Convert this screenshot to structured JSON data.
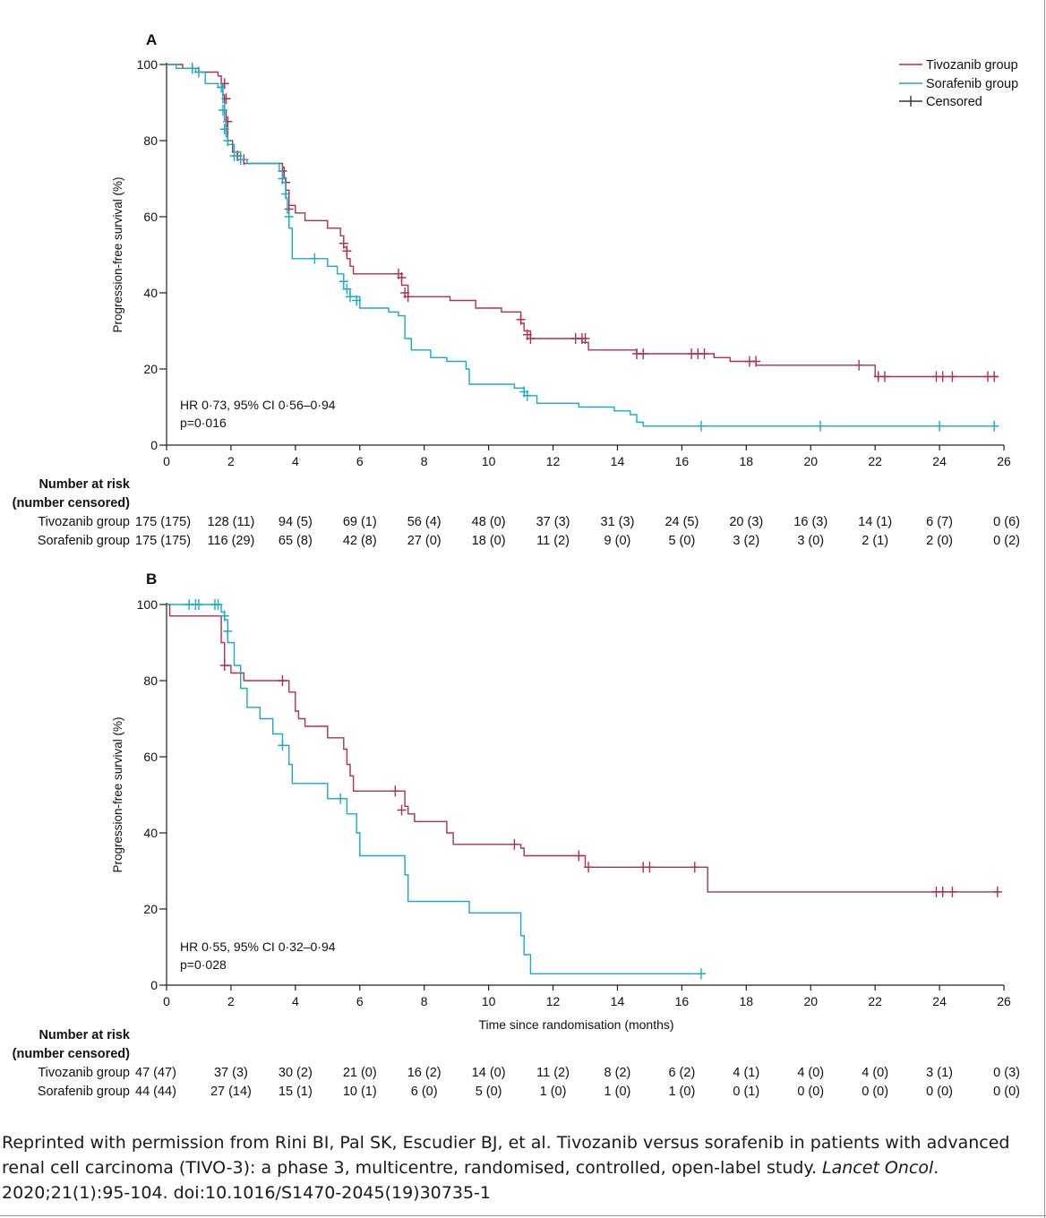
{
  "legend": {
    "tivozanib": "Tivozanib group",
    "sorafenib": "Sorafenib group",
    "censored": "Censored"
  },
  "colors": {
    "tivozanib": "#b0304f",
    "sorafenib": "#1aabc8",
    "axis": "#222222"
  },
  "risk_header": [
    "Number at risk",
    "(number censored)"
  ],
  "caption": {
    "text_before": "Reprinted with permission from Rini BI, Pal SK, Escudier BJ, et al. Tivozanib versus sorafenib in patients with advanced renal cell carcinoma (TIVO-3): a phase 3, multicentre, randomised, controlled, open-label study. ",
    "journal": "Lancet Oncol",
    "text_after": ". 2020;21(1):95-104. doi:10.1016/S1470-2045(19)30735-1"
  },
  "chart_data": [
    {
      "type": "line",
      "panel": "A",
      "ylabel": "Progression-free survival (%)",
      "xlabel": "",
      "xlim": [
        0,
        26
      ],
      "ylim": [
        0,
        100
      ],
      "xticks": [
        0,
        2,
        4,
        6,
        8,
        10,
        12,
        14,
        16,
        18,
        20,
        22,
        24,
        26
      ],
      "yticks": [
        0,
        20,
        40,
        60,
        80,
        100
      ],
      "annotation": [
        "HR 0·73, 95% CI 0·56–0·94",
        "p=0·016"
      ],
      "series": [
        {
          "name": "Tivozanib group",
          "steps": [
            [
              0,
              100
            ],
            [
              0.5,
              99
            ],
            [
              1.0,
              98
            ],
            [
              1.6,
              97
            ],
            [
              1.7,
              95
            ],
            [
              1.75,
              92
            ],
            [
              1.8,
              88
            ],
            [
              1.85,
              84
            ],
            [
              1.9,
              80
            ],
            [
              2.05,
              77
            ],
            [
              2.2,
              75
            ],
            [
              2.4,
              74
            ],
            [
              3.6,
              73
            ],
            [
              3.65,
              70
            ],
            [
              3.7,
              67
            ],
            [
              3.8,
              63
            ],
            [
              4.0,
              61
            ],
            [
              4.3,
              59
            ],
            [
              5.0,
              57
            ],
            [
              5.4,
              55
            ],
            [
              5.5,
              52
            ],
            [
              5.6,
              49
            ],
            [
              5.7,
              47
            ],
            [
              5.8,
              45
            ],
            [
              7.3,
              42
            ],
            [
              7.5,
              39
            ],
            [
              8.8,
              38
            ],
            [
              9.6,
              36
            ],
            [
              10.4,
              35
            ],
            [
              11.0,
              32
            ],
            [
              11.1,
              30
            ],
            [
              11.3,
              28
            ],
            [
              12.9,
              27
            ],
            [
              13.1,
              25
            ],
            [
              14.6,
              24
            ],
            [
              17.0,
              23
            ],
            [
              17.5,
              22
            ],
            [
              18.3,
              21
            ],
            [
              18.7,
              21
            ],
            [
              21.6,
              21
            ],
            [
              22.0,
              18
            ],
            [
              25.8,
              18
            ]
          ],
          "censored": [
            [
              0.8,
              99
            ],
            [
              1.8,
              95
            ],
            [
              1.85,
              91
            ],
            [
              1.9,
              85
            ],
            [
              2.2,
              76
            ],
            [
              2.4,
              75
            ],
            [
              3.6,
              72
            ],
            [
              3.7,
              69
            ],
            [
              3.8,
              62
            ],
            [
              5.5,
              53
            ],
            [
              5.6,
              51
            ],
            [
              7.2,
              45
            ],
            [
              7.3,
              44
            ],
            [
              7.4,
              40
            ],
            [
              7.5,
              39
            ],
            [
              11.0,
              33
            ],
            [
              11.2,
              29
            ],
            [
              11.3,
              28
            ],
            [
              12.7,
              28
            ],
            [
              12.9,
              28
            ],
            [
              13.0,
              28
            ],
            [
              14.6,
              24
            ],
            [
              14.8,
              24
            ],
            [
              16.3,
              24
            ],
            [
              16.5,
              24
            ],
            [
              16.7,
              24
            ],
            [
              18.1,
              22
            ],
            [
              18.3,
              22
            ],
            [
              21.5,
              21
            ],
            [
              22.1,
              18
            ],
            [
              22.3,
              18
            ],
            [
              23.9,
              18
            ],
            [
              24.1,
              18
            ],
            [
              24.4,
              18
            ],
            [
              25.5,
              18
            ],
            [
              25.7,
              18
            ]
          ]
        },
        {
          "name": "Sorafenib group",
          "steps": [
            [
              0,
              100
            ],
            [
              0.3,
              99
            ],
            [
              0.9,
              98
            ],
            [
              1.2,
              95
            ],
            [
              1.6,
              94
            ],
            [
              1.75,
              90
            ],
            [
              1.8,
              85
            ],
            [
              1.85,
              81
            ],
            [
              1.9,
              79
            ],
            [
              2.1,
              77
            ],
            [
              2.3,
              75
            ],
            [
              2.5,
              74
            ],
            [
              3.5,
              72
            ],
            [
              3.6,
              69
            ],
            [
              3.7,
              65
            ],
            [
              3.75,
              61
            ],
            [
              3.8,
              57
            ],
            [
              3.9,
              49
            ],
            [
              5.0,
              47
            ],
            [
              5.3,
              45
            ],
            [
              5.5,
              41
            ],
            [
              5.7,
              39
            ],
            [
              6.0,
              36
            ],
            [
              6.9,
              35
            ],
            [
              7.2,
              34
            ],
            [
              7.4,
              28
            ],
            [
              7.6,
              25
            ],
            [
              8.2,
              23
            ],
            [
              8.7,
              22
            ],
            [
              9.3,
              20
            ],
            [
              9.4,
              16
            ],
            [
              10.8,
              15
            ],
            [
              11.1,
              13
            ],
            [
              11.5,
              11
            ],
            [
              12.8,
              10
            ],
            [
              13.9,
              9
            ],
            [
              14.4,
              8
            ],
            [
              14.6,
              6
            ],
            [
              14.8,
              5
            ],
            [
              25.8,
              5
            ]
          ],
          "censored": [
            [
              0.8,
              99
            ],
            [
              1.0,
              98
            ],
            [
              1.7,
              94
            ],
            [
              1.75,
              88
            ],
            [
              1.8,
              83
            ],
            [
              1.9,
              80
            ],
            [
              2.1,
              76
            ],
            [
              2.3,
              75
            ],
            [
              3.6,
              70
            ],
            [
              3.7,
              66
            ],
            [
              3.8,
              60
            ],
            [
              4.6,
              49
            ],
            [
              5.5,
              43
            ],
            [
              5.6,
              41
            ],
            [
              5.7,
              39
            ],
            [
              5.9,
              38
            ],
            [
              11.1,
              14
            ],
            [
              11.2,
              13
            ],
            [
              16.6,
              5
            ],
            [
              20.3,
              5
            ],
            [
              24.0,
              5
            ],
            [
              25.7,
              5
            ]
          ]
        }
      ],
      "risk_table": {
        "groups": [
          "Tivozanib group",
          "Sorafenib group"
        ],
        "rows": [
          [
            "175 (175)",
            "128 (11)",
            "94 (5)",
            "69 (1)",
            "56 (4)",
            "48 (0)",
            "37 (3)",
            "31 (3)",
            "24 (5)",
            "20 (3)",
            "16 (3)",
            "14 (1)",
            "6 (7)",
            "0 (6)"
          ],
          [
            "175 (175)",
            "116 (29)",
            "65 (8)",
            "42 (8)",
            "27 (0)",
            "18 (0)",
            "11 (2)",
            "9 (0)",
            "5 (0)",
            "3 (2)",
            "3 (0)",
            "2 (1)",
            "2 (0)",
            "0 (2)"
          ]
        ]
      }
    },
    {
      "type": "line",
      "panel": "B",
      "ylabel": "Progression-free survival (%)",
      "xlabel": "Time since randomisation (months)",
      "xlim": [
        0,
        26
      ],
      "ylim": [
        0,
        100
      ],
      "xticks": [
        0,
        2,
        4,
        6,
        8,
        10,
        12,
        14,
        16,
        18,
        20,
        22,
        24,
        26
      ],
      "yticks": [
        0,
        20,
        40,
        60,
        80,
        100
      ],
      "annotation": [
        "HR 0·55, 95% CI 0·32–0·94",
        "p=0·028"
      ],
      "series": [
        {
          "name": "Tivozanib group",
          "steps": [
            [
              0,
              100
            ],
            [
              0.1,
              97
            ],
            [
              1.7,
              90
            ],
            [
              1.8,
              84
            ],
            [
              2.0,
              82
            ],
            [
              2.4,
              80
            ],
            [
              3.8,
              77
            ],
            [
              4.0,
              72
            ],
            [
              4.1,
              70
            ],
            [
              4.3,
              68
            ],
            [
              5.0,
              65
            ],
            [
              5.5,
              62
            ],
            [
              5.6,
              58
            ],
            [
              5.7,
              55
            ],
            [
              5.8,
              51
            ],
            [
              7.4,
              47
            ],
            [
              7.5,
              45
            ],
            [
              7.7,
              43
            ],
            [
              8.7,
              40
            ],
            [
              8.9,
              37
            ],
            [
              11.0,
              36
            ],
            [
              11.1,
              34
            ],
            [
              13.0,
              31
            ],
            [
              16.8,
              24.5
            ],
            [
              25.8,
              24.5
            ]
          ],
          "censored": [
            [
              1.8,
              84
            ],
            [
              3.6,
              80
            ],
            [
              7.1,
              51
            ],
            [
              7.3,
              46
            ],
            [
              10.8,
              37
            ],
            [
              12.8,
              34
            ],
            [
              13.1,
              31
            ],
            [
              14.8,
              31
            ],
            [
              15.0,
              31
            ],
            [
              16.4,
              31
            ],
            [
              23.9,
              24.5
            ],
            [
              24.1,
              24.5
            ],
            [
              24.4,
              24.5
            ],
            [
              25.8,
              24.5
            ]
          ]
        },
        {
          "name": "Sorafenib group",
          "steps": [
            [
              0,
              100
            ],
            [
              1.7,
              98
            ],
            [
              1.8,
              96
            ],
            [
              1.9,
              90
            ],
            [
              2.1,
              84
            ],
            [
              2.3,
              78
            ],
            [
              2.5,
              73
            ],
            [
              2.9,
              70
            ],
            [
              3.3,
              66
            ],
            [
              3.6,
              63
            ],
            [
              3.8,
              58
            ],
            [
              3.9,
              53
            ],
            [
              5.0,
              49
            ],
            [
              5.6,
              45
            ],
            [
              5.9,
              40
            ],
            [
              6.0,
              34
            ],
            [
              7.4,
              29
            ],
            [
              7.5,
              22
            ],
            [
              9.4,
              19
            ],
            [
              11.0,
              13
            ],
            [
              11.1,
              8
            ],
            [
              11.3,
              3
            ],
            [
              16.6,
              3
            ]
          ],
          "censored": [
            [
              0.7,
              100
            ],
            [
              0.9,
              100
            ],
            [
              1.0,
              100
            ],
            [
              1.5,
              100
            ],
            [
              1.6,
              100
            ],
            [
              1.8,
              97
            ],
            [
              1.9,
              93
            ],
            [
              3.6,
              63
            ],
            [
              5.4,
              49
            ],
            [
              16.6,
              3
            ]
          ]
        }
      ],
      "risk_table": {
        "groups": [
          "Tivozanib group",
          "Sorafenib group"
        ],
        "rows": [
          [
            "47 (47)",
            "37 (3)",
            "30 (2)",
            "21 (0)",
            "16 (2)",
            "14 (0)",
            "11 (2)",
            "8 (2)",
            "6 (2)",
            "4 (1)",
            "4 (0)",
            "4 (0)",
            "3 (1)",
            "0 (3)"
          ],
          [
            "44 (44)",
            "27 (14)",
            "15 (1)",
            "10 (1)",
            "6 (0)",
            "5 (0)",
            "1 (0)",
            "1 (0)",
            "1 (0)",
            "0 (1)",
            "0 (0)",
            "0 (0)",
            "0 (0)",
            "0 (0)"
          ]
        ]
      }
    }
  ]
}
